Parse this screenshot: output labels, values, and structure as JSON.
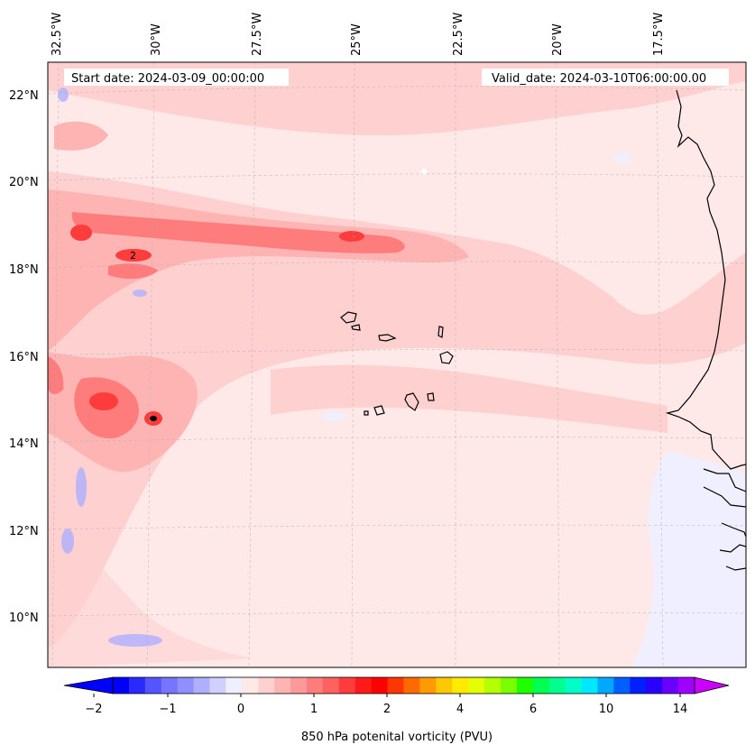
{
  "header": {
    "start_date": "Start date: 2024-03-09_00:00:00",
    "valid_date": "Valid_date: 2024-03-10T06:00:00.00"
  },
  "map": {
    "lon_labels": [
      "32.5°W",
      "30°W",
      "27.5°W",
      "25°W",
      "22.5°W",
      "20°W",
      "17.5°W"
    ],
    "lat_labels": [
      "22°N",
      "20°N",
      "18°N",
      "16°N",
      "14°N",
      "12°N",
      "10°N"
    ],
    "contour_label": "2",
    "gridlines": "dashed"
  },
  "colorbar": {
    "tick_labels": [
      "−2",
      "−1",
      "0",
      "1",
      "2",
      "4",
      "6",
      "10",
      "14"
    ],
    "label": "850 hPa potenital vorticity (PVU)",
    "colors": [
      "#0000ff",
      "#2a2aff",
      "#5555ff",
      "#7575ff",
      "#8f8fff",
      "#afafff",
      "#d0d0ff",
      "#efefff",
      "#ffe8e8",
      "#ffd0d0",
      "#ffb4b4",
      "#ff9898",
      "#ff7c7c",
      "#ff6060",
      "#ff3c3c",
      "#ff1a1a",
      "#ff0000",
      "#ff3600",
      "#ff6a00",
      "#ff9a00",
      "#ffc800",
      "#ffea00",
      "#e6ff00",
      "#b4ff00",
      "#7aff00",
      "#20ff00",
      "#00ff50",
      "#00ff90",
      "#00ffc8",
      "#00e8ff",
      "#00a8ff",
      "#0060ff",
      "#0020ff",
      "#2a00ff",
      "#6a00ff",
      "#a000ff"
    ]
  }
}
